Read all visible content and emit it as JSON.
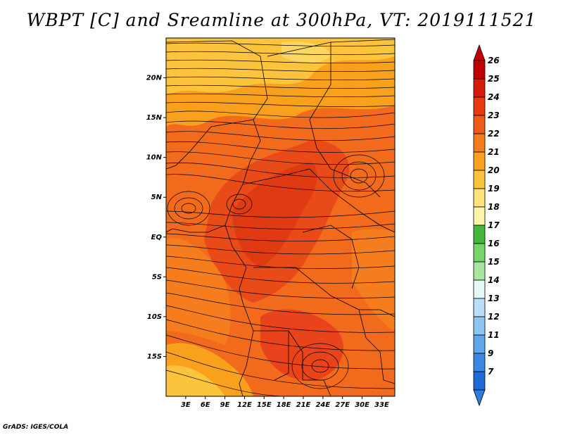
{
  "title": "WBPT [C] and Sreamline at 300hPa, VT: 2019111521",
  "credit": "GrADS: IGES/COLA",
  "map": {
    "lon_range": [
      0,
      35
    ],
    "lat_range": [
      -20,
      25
    ],
    "lat_ticks": [
      {
        "value": 20,
        "label": "20N"
      },
      {
        "value": 15,
        "label": "15N"
      },
      {
        "value": 10,
        "label": "10N"
      },
      {
        "value": 5,
        "label": "5N"
      },
      {
        "value": 0,
        "label": "EQ"
      },
      {
        "value": -5,
        "label": "5S"
      },
      {
        "value": -10,
        "label": "10S"
      },
      {
        "value": -15,
        "label": "15S"
      }
    ],
    "lon_ticks": [
      {
        "value": 3,
        "label": "3E"
      },
      {
        "value": 6,
        "label": "6E"
      },
      {
        "value": 9,
        "label": "9E"
      },
      {
        "value": 12,
        "label": "12E"
      },
      {
        "value": 15,
        "label": "15E"
      },
      {
        "value": 18,
        "label": "18E"
      },
      {
        "value": 21,
        "label": "21E"
      },
      {
        "value": 24,
        "label": "24E"
      },
      {
        "value": 27,
        "label": "27E"
      },
      {
        "value": 30,
        "label": "30E"
      },
      {
        "value": 33,
        "label": "33E"
      }
    ]
  },
  "colorbar": {
    "levels": [
      {
        "label": "26",
        "color": "#c00000"
      },
      {
        "label": "25",
        "color": "#d81a08"
      },
      {
        "label": "24",
        "color": "#e83a10"
      },
      {
        "label": "23",
        "color": "#f05a18"
      },
      {
        "label": "22",
        "color": "#f57d1e"
      },
      {
        "label": "21",
        "color": "#f9a11c"
      },
      {
        "label": "20",
        "color": "#fcc43c"
      },
      {
        "label": "19",
        "color": "#fee37a"
      },
      {
        "label": "18",
        "color": "#fdf4a8"
      },
      {
        "label": "17",
        "color": "#43b83b"
      },
      {
        "label": "16",
        "color": "#76d46a"
      },
      {
        "label": "15",
        "color": "#a6e69e"
      },
      {
        "label": "14",
        "color": "#e4f8f5"
      },
      {
        "label": "13",
        "color": "#b8def8"
      },
      {
        "label": "12",
        "color": "#8cc6f4"
      },
      {
        "label": "11",
        "color": "#5ea7ec"
      },
      {
        "label": "9",
        "color": "#3a88e2"
      },
      {
        "label": "7",
        "color": "#1f6cd6"
      }
    ],
    "bottom_color": "#2d7de0"
  }
}
